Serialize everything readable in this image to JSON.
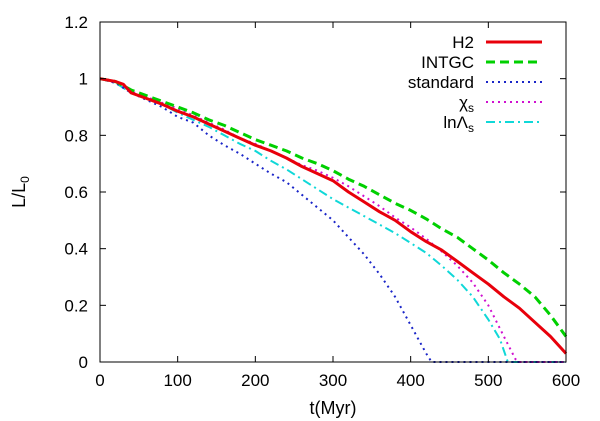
{
  "chart_data": {
    "type": "line",
    "xlabel": "t(Myr)",
    "ylabel_main": "L/L",
    "ylabel_sub": "0",
    "xlim": [
      0,
      600
    ],
    "ylim": [
      0,
      1.2
    ],
    "xticks": [
      0,
      100,
      200,
      300,
      400,
      500,
      600
    ],
    "yticks": [
      0,
      0.2,
      0.4,
      0.6,
      0.8,
      1,
      1.2
    ],
    "xtick_labels": [
      "0",
      "100",
      "200",
      "300",
      "400",
      "500",
      "600"
    ],
    "ytick_labels": [
      "0",
      "0.2",
      "0.4",
      "0.6",
      "0.8",
      "1",
      "1.2"
    ],
    "grid": false,
    "legend_position": "top-right",
    "series": [
      {
        "name": "H2",
        "label_main": "H2",
        "label_sub": "",
        "color": "#e8000b",
        "dash": "solid",
        "width": 3,
        "x": [
          0,
          20,
          30,
          40,
          60,
          80,
          100,
          120,
          140,
          160,
          180,
          200,
          220,
          240,
          260,
          280,
          300,
          320,
          340,
          360,
          380,
          400,
          420,
          440,
          460,
          480,
          500,
          520,
          540,
          560,
          580,
          600
        ],
        "y": [
          1.0,
          0.99,
          0.98,
          0.95,
          0.93,
          0.91,
          0.885,
          0.865,
          0.84,
          0.815,
          0.79,
          0.765,
          0.745,
          0.72,
          0.69,
          0.665,
          0.64,
          0.6,
          0.565,
          0.53,
          0.5,
          0.46,
          0.425,
          0.395,
          0.355,
          0.315,
          0.275,
          0.23,
          0.19,
          0.14,
          0.09,
          0.03
        ]
      },
      {
        "name": "INTGC",
        "label_main": "INTGC",
        "label_sub": "",
        "color": "#00d000",
        "dash": "dashed",
        "width": 3,
        "x": [
          0,
          20,
          40,
          60,
          80,
          100,
          120,
          140,
          160,
          180,
          200,
          220,
          240,
          260,
          280,
          300,
          320,
          340,
          360,
          380,
          400,
          420,
          440,
          460,
          480,
          500,
          520,
          540,
          560,
          580,
          600
        ],
        "y": [
          1.0,
          0.99,
          0.96,
          0.94,
          0.92,
          0.9,
          0.88,
          0.855,
          0.835,
          0.81,
          0.785,
          0.765,
          0.745,
          0.72,
          0.7,
          0.675,
          0.645,
          0.62,
          0.59,
          0.56,
          0.535,
          0.505,
          0.47,
          0.44,
          0.4,
          0.36,
          0.315,
          0.275,
          0.23,
          0.165,
          0.09
        ]
      },
      {
        "name": "standard",
        "label_main": "standard",
        "label_sub": "",
        "color": "#1a25c8",
        "dash": "dotted",
        "width": 2,
        "x": [
          0,
          20,
          40,
          60,
          80,
          100,
          120,
          140,
          160,
          180,
          200,
          220,
          240,
          260,
          280,
          300,
          320,
          340,
          360,
          380,
          400,
          410,
          420,
          427,
          430,
          600
        ],
        "y": [
          1.0,
          0.985,
          0.95,
          0.925,
          0.9,
          0.865,
          0.845,
          0.8,
          0.765,
          0.735,
          0.7,
          0.665,
          0.635,
          0.59,
          0.545,
          0.5,
          0.44,
          0.38,
          0.31,
          0.23,
          0.13,
          0.08,
          0.03,
          0.0,
          0.0,
          0.0
        ]
      },
      {
        "name": "chi_s",
        "label_main": "χ",
        "label_sub": "s",
        "color": "#d010d0",
        "dash": "dotted",
        "width": 2,
        "x": [
          0,
          20,
          40,
          60,
          80,
          100,
          120,
          140,
          160,
          180,
          200,
          220,
          240,
          260,
          280,
          300,
          320,
          340,
          360,
          380,
          400,
          420,
          440,
          460,
          480,
          500,
          520,
          535,
          540,
          600
        ],
        "y": [
          1.0,
          0.985,
          0.955,
          0.935,
          0.915,
          0.895,
          0.87,
          0.845,
          0.82,
          0.79,
          0.77,
          0.745,
          0.72,
          0.695,
          0.675,
          0.65,
          0.62,
          0.585,
          0.55,
          0.51,
          0.475,
          0.435,
          0.39,
          0.34,
          0.28,
          0.2,
          0.09,
          0.01,
          0.0,
          0.0
        ]
      },
      {
        "name": "lnLambda_s",
        "label_main": "lnΛ",
        "label_sub": "s",
        "color": "#10d8d8",
        "dash": "dashdot",
        "width": 2,
        "x": [
          0,
          20,
          40,
          60,
          80,
          100,
          120,
          140,
          160,
          180,
          200,
          220,
          240,
          260,
          280,
          300,
          320,
          340,
          360,
          380,
          400,
          420,
          440,
          460,
          480,
          500,
          515,
          525,
          600
        ],
        "y": [
          1.0,
          0.985,
          0.95,
          0.93,
          0.91,
          0.88,
          0.855,
          0.83,
          0.8,
          0.77,
          0.745,
          0.71,
          0.68,
          0.645,
          0.61,
          0.575,
          0.545,
          0.515,
          0.485,
          0.455,
          0.42,
          0.385,
          0.34,
          0.29,
          0.23,
          0.15,
          0.08,
          0.0,
          0.0
        ]
      }
    ]
  }
}
